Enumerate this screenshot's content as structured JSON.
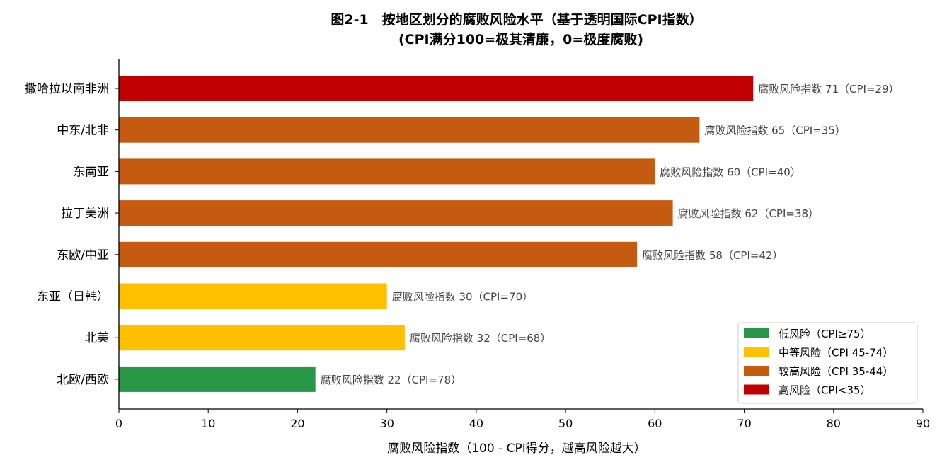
{
  "chart_data": {
    "type": "bar",
    "orientation": "horizontal",
    "title_line1": "图2-1　按地区划分的腐败风险水平（基于透明国际CPI指数）",
    "title_line2": "(CPI满分100=极其清廉，0=极度腐败)",
    "xlabel": "腐败风险指数（100 - CPI得分，越高风险越大）",
    "xlim": [
      0,
      90
    ],
    "xticks": [
      0,
      10,
      20,
      30,
      40,
      50,
      60,
      70,
      80,
      90
    ],
    "bars": [
      {
        "category": "撒哈拉以南非洲",
        "value": 71,
        "label": "腐败风险指数 71（CPI=29）",
        "color": "#c00000"
      },
      {
        "category": "中东/北非",
        "value": 65,
        "label": "腐败风险指数 65（CPI=35）",
        "color": "#c55a11"
      },
      {
        "category": "东南亚",
        "value": 60,
        "label": "腐败风险指数 60（CPI=40）",
        "color": "#c55a11"
      },
      {
        "category": "拉丁美洲",
        "value": 62,
        "label": "腐败风险指数 62（CPI=38）",
        "color": "#c55a11"
      },
      {
        "category": "东欧/中亚",
        "value": 58,
        "label": "腐败风险指数 58（CPI=42）",
        "color": "#c55a11"
      },
      {
        "category": "东亚（日韩）",
        "value": 30,
        "label": "腐败风险指数 30（CPI=70）",
        "color": "#ffc000"
      },
      {
        "category": "北美",
        "value": 32,
        "label": "腐败风险指数 32（CPI=68）",
        "color": "#ffc000"
      },
      {
        "category": "北欧/西欧",
        "value": 22,
        "label": "腐败风险指数 22（CPI=78）",
        "color": "#2a9648"
      }
    ],
    "legend": {
      "position": "bottom-right",
      "entries": [
        {
          "label": "低风险（CPI≥75）",
          "color": "#2a9648"
        },
        {
          "label": "中等风险（CPI 45-74）",
          "color": "#ffc000"
        },
        {
          "label": "较高风险（CPI 35-44）",
          "color": "#c55a11"
        },
        {
          "label": "高风险（CPI<35）",
          "color": "#c00000"
        }
      ]
    }
  }
}
